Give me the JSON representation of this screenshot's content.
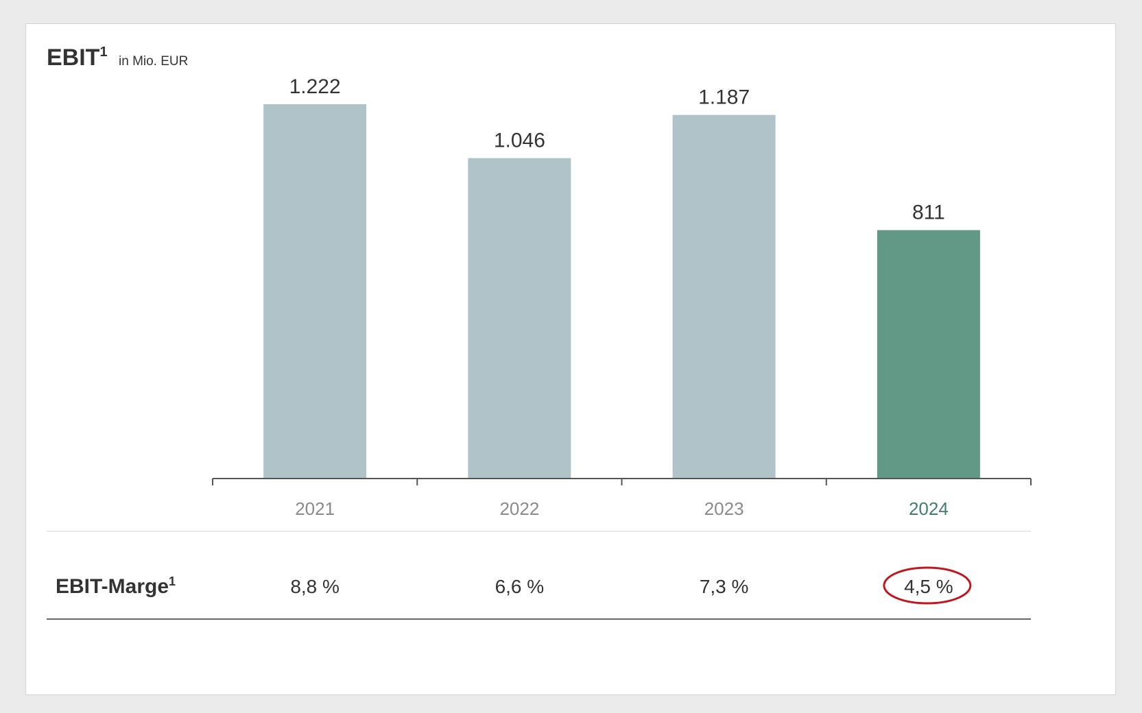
{
  "chart_data": {
    "type": "bar",
    "title": "EBIT",
    "title_superscript": "1",
    "unit_label": "in Mio. EUR",
    "categories": [
      "2021",
      "2022",
      "2023",
      "2024"
    ],
    "values": [
      1222,
      1046,
      1187,
      811
    ],
    "value_labels": [
      "1.222",
      "1.046",
      "1.187",
      "811"
    ],
    "ylim": [
      0,
      1222
    ],
    "highlight_index": 3,
    "grid": false,
    "margin_row": {
      "label": "EBIT-Marge",
      "label_superscript": "1",
      "values": [
        8.8,
        6.6,
        7.3,
        4.5
      ],
      "value_labels": [
        "8,8 %",
        "6,6 %",
        "7,3 %",
        "4,5 %"
      ],
      "circled_index": 3
    }
  },
  "colors": {
    "bar": "#b0c3c8",
    "bar_highlight": "#629886",
    "highlight_text": "#3e7f68",
    "axis": "#555555",
    "tick_text": "#8a8a8a",
    "value_text": "#333333",
    "circle": "#c2161d"
  }
}
